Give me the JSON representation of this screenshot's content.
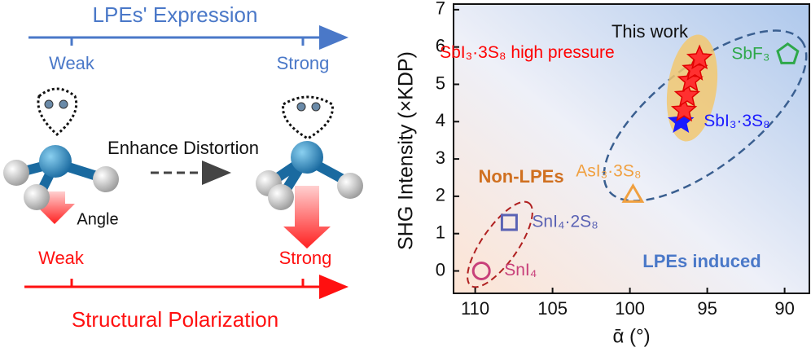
{
  "diagram": {
    "top_label": "LPEs' Expression",
    "top_weak": "Weak",
    "top_strong": "Strong",
    "middle": "Enhance Distortion",
    "angle": "Angle",
    "bottom_weak": "Weak",
    "bottom_strong": "Strong",
    "bottom_label": "Structural Polarization"
  },
  "chart_data": {
    "type": "scatter",
    "xlabel": "ᾱ (°)",
    "ylabel": "SHG Intensity (×KDP)",
    "xlim": [
      111.4,
      88.4
    ],
    "ylim": [
      -0.6,
      7.15
    ],
    "xticks": [
      110,
      105,
      100,
      95,
      90
    ],
    "yticks": [
      0,
      1,
      2,
      3,
      4,
      5,
      6,
      7
    ],
    "annotations": [
      "This work",
      "Non-LPEs",
      "LPEs induced"
    ],
    "series": [
      {
        "name": "SnI₄",
        "color": "#c8407a",
        "marker": "circle",
        "x": [
          109.6
        ],
        "values": [
          0
        ]
      },
      {
        "name": "SnI₄·2S₈",
        "color": "#5a62b4",
        "marker": "square",
        "x": [
          107.8
        ],
        "values": [
          1.3
        ]
      },
      {
        "name": "AsI₃·3S₈",
        "color": "#f0a040",
        "marker": "triangle",
        "x": [
          99.8
        ],
        "values": [
          2.0
        ]
      },
      {
        "name": "SbI₃·3S₈",
        "color": "#1a1aff",
        "marker": "star",
        "x": [
          96.7
        ],
        "values": [
          4.0
        ]
      },
      {
        "name": "SbF₃",
        "color": "#2ea84a",
        "marker": "pentagon",
        "x": [
          89.8
        ],
        "values": [
          5.8
        ]
      },
      {
        "name": "SbI₃·3S₈ high pressure",
        "color": "#ff0000",
        "marker": "star",
        "x": [
          96.5,
          96.3,
          96.1,
          95.8,
          95.5
        ],
        "values": [
          4.3,
          4.7,
          5.1,
          5.4,
          5.7
        ]
      }
    ]
  }
}
